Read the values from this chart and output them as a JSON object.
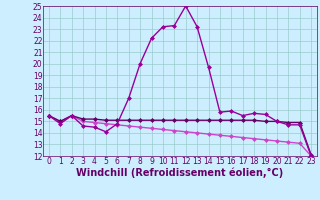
{
  "x": [
    0,
    1,
    2,
    3,
    4,
    5,
    6,
    7,
    8,
    9,
    10,
    11,
    12,
    13,
    14,
    15,
    16,
    17,
    18,
    19,
    20,
    21,
    22,
    23
  ],
  "line1": [
    15.5,
    14.8,
    15.5,
    14.6,
    14.5,
    14.1,
    14.8,
    17.0,
    20.0,
    22.2,
    23.2,
    23.3,
    25.0,
    23.2,
    19.7,
    15.8,
    15.9,
    15.5,
    15.7,
    15.6,
    15.0,
    14.7,
    14.7,
    12.0
  ],
  "line2": [
    15.5,
    15.0,
    15.5,
    15.2,
    15.2,
    15.1,
    15.1,
    15.1,
    15.1,
    15.1,
    15.1,
    15.1,
    15.1,
    15.1,
    15.1,
    15.1,
    15.1,
    15.1,
    15.1,
    15.0,
    15.0,
    14.9,
    14.9,
    12.1
  ],
  "line3": [
    15.5,
    15.0,
    15.5,
    15.0,
    14.9,
    14.8,
    14.7,
    14.6,
    14.5,
    14.4,
    14.3,
    14.2,
    14.1,
    14.0,
    13.9,
    13.8,
    13.7,
    13.6,
    13.5,
    13.4,
    13.3,
    13.2,
    13.1,
    12.0
  ],
  "line_color1": "#990099",
  "line_color2": "#660066",
  "line_color3": "#cc44cc",
  "bg_color": "#cceeff",
  "grid_color": "#99cccc",
  "xlabel": "Windchill (Refroidissement éolien,°C)",
  "ylim": [
    12,
    25
  ],
  "xlim": [
    -0.5,
    23.5
  ],
  "yticks": [
    12,
    13,
    14,
    15,
    16,
    17,
    18,
    19,
    20,
    21,
    22,
    23,
    24,
    25
  ],
  "xticks": [
    0,
    1,
    2,
    3,
    4,
    5,
    6,
    7,
    8,
    9,
    10,
    11,
    12,
    13,
    14,
    15,
    16,
    17,
    18,
    19,
    20,
    21,
    22,
    23
  ],
  "marker": "D",
  "markersize": 2.0,
  "linewidth": 1.0,
  "font_color": "#660066",
  "xlabel_fontsize": 7.0,
  "tick_fontsize": 5.5,
  "tick_color": "#660066"
}
